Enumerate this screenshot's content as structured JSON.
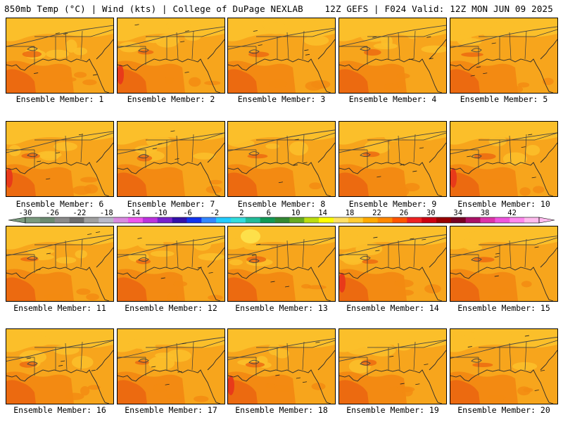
{
  "header": {
    "left": "850mb Temp (°C) | Wind (kts) | College of DuPage NEXLAB",
    "right": "12Z GEFS | F024 Valid: 12Z MON JUN 09 2025"
  },
  "panels": [
    {
      "label": "Ensemble Member: 1"
    },
    {
      "label": "Ensemble Member: 2"
    },
    {
      "label": "Ensemble Member: 3"
    },
    {
      "label": "Ensemble Member: 4"
    },
    {
      "label": "Ensemble Member: 5"
    },
    {
      "label": "Ensemble Member: 6"
    },
    {
      "label": "Ensemble Member: 7"
    },
    {
      "label": "Ensemble Member: 8"
    },
    {
      "label": "Ensemble Member: 9"
    },
    {
      "label": "Ensemble Member: 10"
    },
    {
      "label": "Ensemble Member: 11"
    },
    {
      "label": "Ensemble Member: 12"
    },
    {
      "label": "Ensemble Member: 13"
    },
    {
      "label": "Ensemble Member: 14"
    },
    {
      "label": "Ensemble Member: 15"
    },
    {
      "label": "Ensemble Member: 16"
    },
    {
      "label": "Ensemble Member: 17"
    },
    {
      "label": "Ensemble Member: 18"
    },
    {
      "label": "Ensemble Member: 19"
    },
    {
      "label": "Ensemble Member: 20"
    }
  ],
  "colorbar": {
    "labels": [
      "-30",
      "-26",
      "-22",
      "-18",
      "-14",
      "-10",
      "-6",
      "-2",
      "2",
      "6",
      "10",
      "14",
      "18",
      "22",
      "26",
      "30",
      "34",
      "38",
      "42"
    ],
    "colors": [
      "#7a9a7e",
      "#6b8a70",
      "#8a8a8a",
      "#6e6e6e",
      "#a0a0a0",
      "#b9b9c8",
      "#d98be0",
      "#ee55ee",
      "#bb33dd",
      "#7722cc",
      "#3311aa",
      "#1133ee",
      "#3388ff",
      "#22ccff",
      "#33dddd",
      "#22bb99",
      "#119955",
      "#338833",
      "#66aa22",
      "#bbdd11",
      "#ffff00",
      "#ffe066",
      "#ffcc33",
      "#ffaa00",
      "#ff8800",
      "#ff5500",
      "#ee2222",
      "#cc0011",
      "#990000",
      "#770022",
      "#aa1166",
      "#dd33aa",
      "#ee55dd",
      "#ff88ee",
      "#ffbbee"
    ]
  },
  "map_colors": {
    "light": "#fbbf2a",
    "base": "#f7a51c",
    "warm": "#f38a12",
    "hot": "#ec6a10",
    "hottest": "#e83a1a",
    "cool": "#fde04a"
  }
}
